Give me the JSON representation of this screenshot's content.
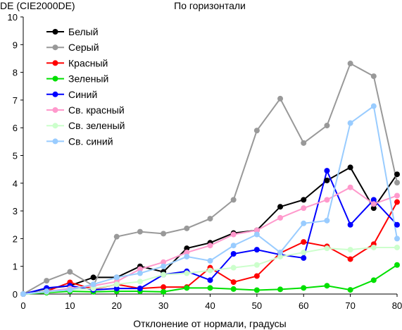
{
  "chart_data": {
    "type": "line",
    "title": "По горизонтали",
    "ylabel": "DE (CIE2000DE)",
    "xlabel": "Отклонение от нормали, градусы",
    "x": [
      0,
      5,
      10,
      15,
      20,
      25,
      30,
      35,
      40,
      45,
      50,
      55,
      60,
      65,
      70,
      75,
      80
    ],
    "xlim": [
      0,
      80
    ],
    "ylim": [
      0,
      10
    ],
    "xticks": [
      "0",
      "10",
      "20",
      "30",
      "40",
      "50",
      "60",
      "70",
      "80"
    ],
    "yticks": [
      "0",
      "1",
      "2",
      "3",
      "4",
      "5",
      "6",
      "7",
      "8",
      "9",
      "10"
    ],
    "grid": false,
    "legend_position": "top-left",
    "series": [
      {
        "name": "Белый",
        "color": "#000000",
        "values": [
          0,
          0.2,
          0.3,
          0.6,
          0.6,
          1.0,
          0.8,
          1.65,
          1.85,
          2.2,
          2.3,
          3.15,
          3.4,
          4.1,
          4.57,
          3.1,
          4.32
        ]
      },
      {
        "name": "Серый",
        "color": "#999999",
        "values": [
          0,
          0.48,
          0.8,
          0.3,
          2.07,
          2.25,
          2.18,
          2.37,
          2.72,
          3.4,
          5.9,
          7.05,
          5.45,
          6.08,
          8.32,
          7.86,
          4.02
        ]
      },
      {
        "name": "Красный",
        "color": "#ff0000",
        "values": [
          0,
          0.1,
          0.42,
          0.18,
          0.35,
          0.2,
          0.25,
          0.25,
          0.95,
          0.43,
          0.65,
          1.48,
          1.88,
          1.72,
          1.26,
          1.8,
          3.32
        ]
      },
      {
        "name": "Зеленый",
        "color": "#00e000",
        "values": [
          0,
          0.05,
          0.1,
          0.08,
          0.1,
          0.1,
          0.08,
          0.22,
          0.22,
          0.18,
          0.14,
          0.17,
          0.22,
          0.3,
          0.15,
          0.5,
          1.05
        ]
      },
      {
        "name": "Синий",
        "color": "#0000ff",
        "values": [
          0,
          0.22,
          0.3,
          0.15,
          0.2,
          0.2,
          0.7,
          0.82,
          0.5,
          1.45,
          1.6,
          1.42,
          1.3,
          4.45,
          2.5,
          3.4,
          2.5
        ]
      },
      {
        "name": "Св. красный",
        "color": "#ff99cc",
        "values": [
          0,
          0.1,
          0.2,
          0.3,
          0.45,
          0.9,
          1.15,
          1.5,
          1.75,
          2.15,
          2.3,
          2.75,
          3.1,
          3.4,
          3.85,
          3.25,
          3.55
        ]
      },
      {
        "name": "Св. зеленый",
        "color": "#ccffcc",
        "values": [
          0,
          0.08,
          0.15,
          0.2,
          0.35,
          0.45,
          0.7,
          0.75,
          0.85,
          0.95,
          1.05,
          1.35,
          1.5,
          1.65,
          1.6,
          1.68,
          1.68
        ]
      },
      {
        "name": "Св. синий",
        "color": "#99ccff",
        "values": [
          0,
          0.1,
          0.15,
          0.35,
          0.6,
          0.75,
          1.0,
          1.35,
          1.2,
          1.75,
          2.15,
          1.5,
          2.55,
          2.65,
          6.17,
          6.78,
          2.0
        ]
      }
    ]
  }
}
